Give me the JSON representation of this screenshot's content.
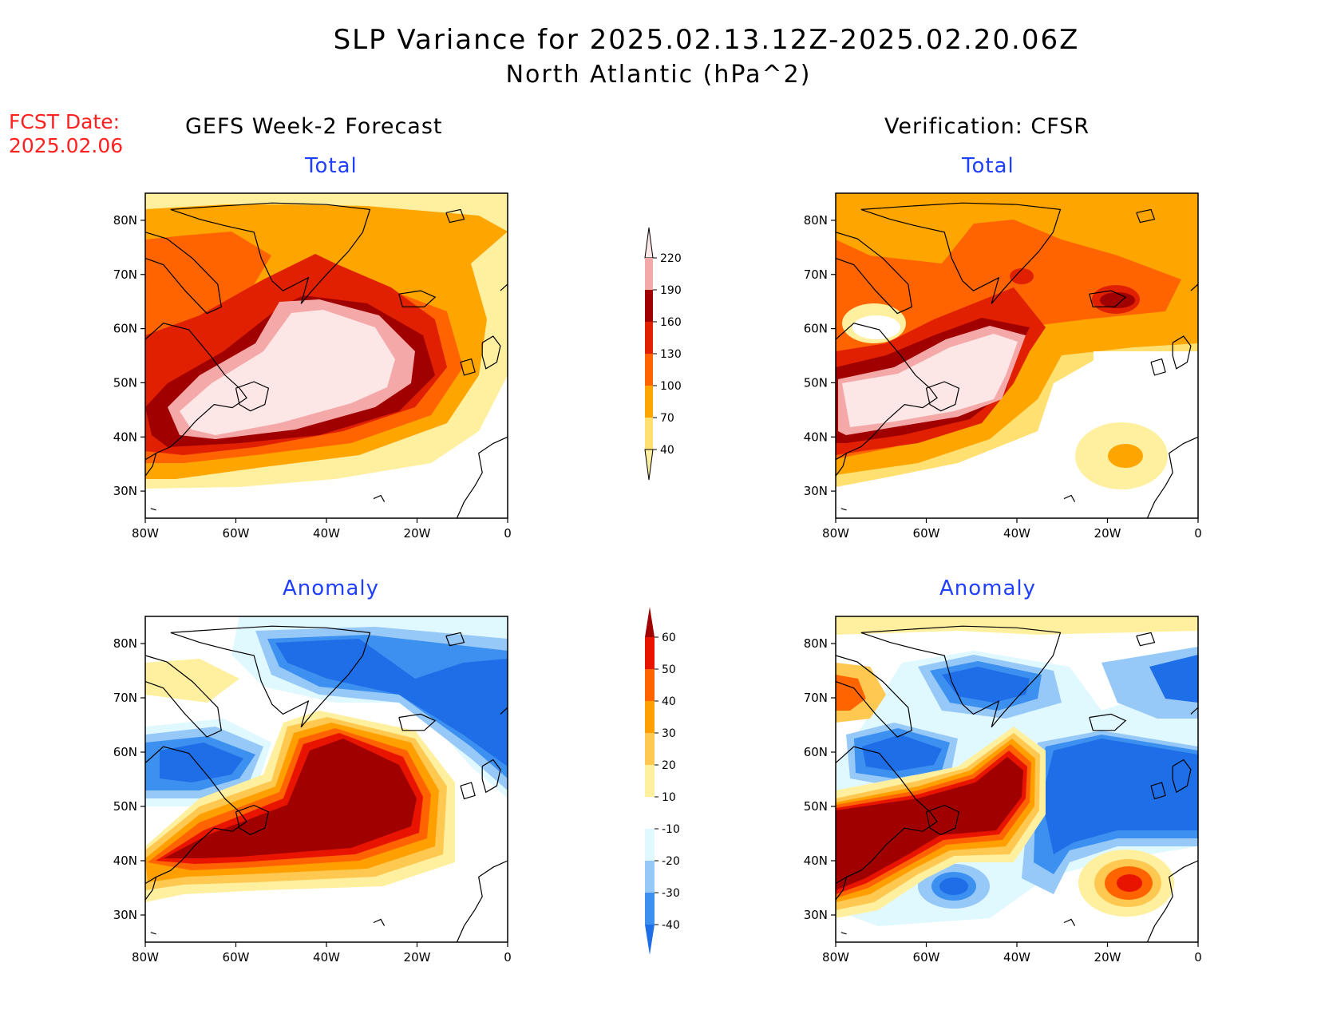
{
  "title": "SLP Variance for 2025.02.13.12Z-2025.02.20.06Z",
  "subtitle": "North Atlantic (hPa^2)",
  "fcst_date": {
    "label": "FCST Date:",
    "value": "2025.02.06"
  },
  "columns": {
    "left": "GEFS Week-2 Forecast",
    "right": "Verification: CFSR"
  },
  "panel_titles": {
    "total": "Total",
    "anomaly": "Anomaly"
  },
  "axes": {
    "lon_labels": [
      "80W",
      "60W",
      "40W",
      "20W",
      "0"
    ],
    "lat_labels": [
      "80N",
      "70N",
      "60N",
      "50N",
      "40N",
      "30N"
    ],
    "lon_range": [
      -80,
      0
    ],
    "lat_range": [
      25,
      85
    ]
  },
  "colorbar_total": {
    "levels": [
      "40",
      "70",
      "100",
      "130",
      "160",
      "190",
      "220"
    ],
    "colors": [
      "#fff0a0",
      "#ffe070",
      "#ffa500",
      "#ff6400",
      "#e02000",
      "#a00000",
      "#f4a8a8",
      "#fde6e6"
    ]
  },
  "colorbar_anomaly": {
    "levels": [
      "-40",
      "-30",
      "-20",
      "-10",
      "10",
      "20",
      "30",
      "40",
      "50",
      "60"
    ],
    "colors": [
      "#1e6ee8",
      "#3c90f0",
      "#96c8f8",
      "#e0f8ff",
      "#ffffff",
      "#fff0a0",
      "#ffc850",
      "#ffa000",
      "#ff6400",
      "#e81400",
      "#a00000"
    ]
  }
}
